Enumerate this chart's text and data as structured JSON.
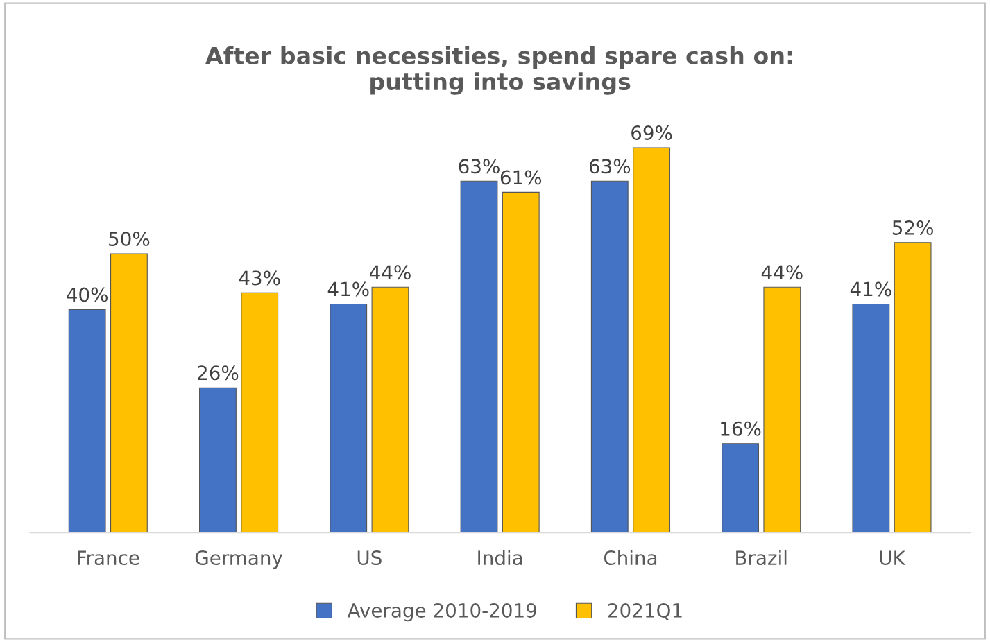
{
  "chart_data": {
    "type": "bar",
    "title": "After basic necessities, spend spare cash on:\nputting into savings",
    "categories": [
      "France",
      "Germany",
      "US",
      "India",
      "China",
      "Brazil",
      "UK"
    ],
    "series": [
      {
        "name": "Average 2010-2019",
        "color": "#4472c4",
        "values": [
          40,
          26,
          41,
          63,
          63,
          16,
          41
        ],
        "value_labels": [
          "40%",
          "26%",
          "41%",
          "63%",
          "63%",
          "16%",
          "41%"
        ]
      },
      {
        "name": "2021Q1",
        "color": "#ffc000",
        "values": [
          50,
          43,
          44,
          61,
          69,
          44,
          52
        ],
        "value_labels": [
          "50%",
          "43%",
          "44%",
          "61%",
          "69%",
          "44%",
          "52%"
        ]
      }
    ],
    "tick_labels": "x",
    "legend": "bottom",
    "grid": false
  }
}
